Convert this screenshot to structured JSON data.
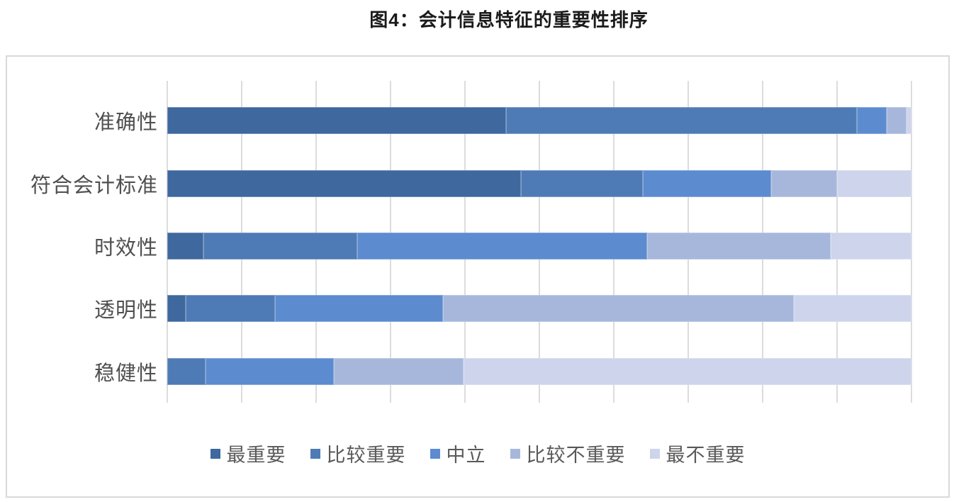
{
  "chart_data": {
    "type": "bar",
    "orientation": "horizontal",
    "stacked": true,
    "value_unit": "percent",
    "title": "图4：会计信息特征的重要性排序",
    "categories": [
      "准确性",
      "符合会计标准",
      "时效性",
      "透明性",
      "稳健性"
    ],
    "series": [
      {
        "name": "最重要",
        "color": "#3E689E",
        "values": [
          45.5,
          47.5,
          4.9,
          2.5,
          0.0
        ]
      },
      {
        "name": "比较重要",
        "color": "#4E7BB5",
        "values": [
          47.2,
          16.4,
          20.6,
          12.0,
          5.1
        ]
      },
      {
        "name": "中立",
        "color": "#5C8BD0",
        "values": [
          4.0,
          17.2,
          39.0,
          22.5,
          17.3
        ]
      },
      {
        "name": "比较不重要",
        "color": "#A7B7DC",
        "values": [
          2.6,
          8.9,
          24.6,
          47.2,
          17.4
        ]
      },
      {
        "name": "最不重要",
        "color": "#CDD4EC",
        "values": [
          0.7,
          10.0,
          10.9,
          15.8,
          60.2
        ]
      }
    ],
    "xlim": [
      0,
      100
    ],
    "x_tick_interval": 10,
    "gridlines": true,
    "axis_tick_labels_shown": false,
    "legend_position": "bottom"
  },
  "colors": {
    "background": "#ffffff",
    "frame_border": "#d9d9d9",
    "gridline": "#dcdcdc",
    "title_text": "#1a1a1a",
    "category_text": "#4f4f4f",
    "legend_text": "#595959"
  }
}
